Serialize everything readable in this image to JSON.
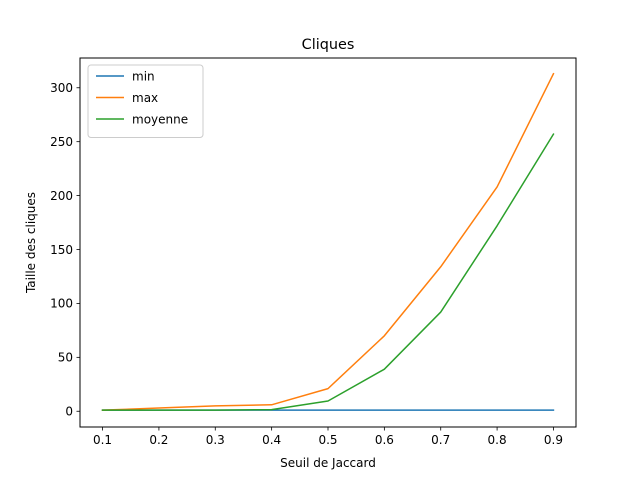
{
  "chart_data": {
    "type": "line",
    "title": "Cliques",
    "xlabel": "Seuil de Jaccard",
    "ylabel": "Taille des cliques",
    "x": [
      0.1,
      0.2,
      0.3,
      0.4,
      0.5,
      0.6,
      0.7,
      0.8,
      0.9
    ],
    "x_tick_labels": [
      "0.1",
      "0.2",
      "0.3",
      "0.4",
      "0.5",
      "0.6",
      "0.7",
      "0.8",
      "0.9"
    ],
    "xlim": [
      0.06,
      0.94
    ],
    "y_ticks": [
      0,
      50,
      100,
      150,
      200,
      250,
      300
    ],
    "ylim": [
      -14.6,
      327.6
    ],
    "grid": false,
    "legend_position": "top-left",
    "series": [
      {
        "name": "min",
        "color": "#1f77b4",
        "values": [
          1,
          1,
          1,
          1,
          1,
          1,
          1,
          1,
          1
        ]
      },
      {
        "name": "max",
        "color": "#ff7f0e",
        "values": [
          1,
          3,
          5,
          6,
          21,
          70,
          134,
          208,
          313
        ]
      },
      {
        "name": "moyenne",
        "color": "#2ca02c",
        "values": [
          1,
          1,
          1,
          1.5,
          9.5,
          39,
          92,
          172,
          257
        ]
      }
    ]
  }
}
